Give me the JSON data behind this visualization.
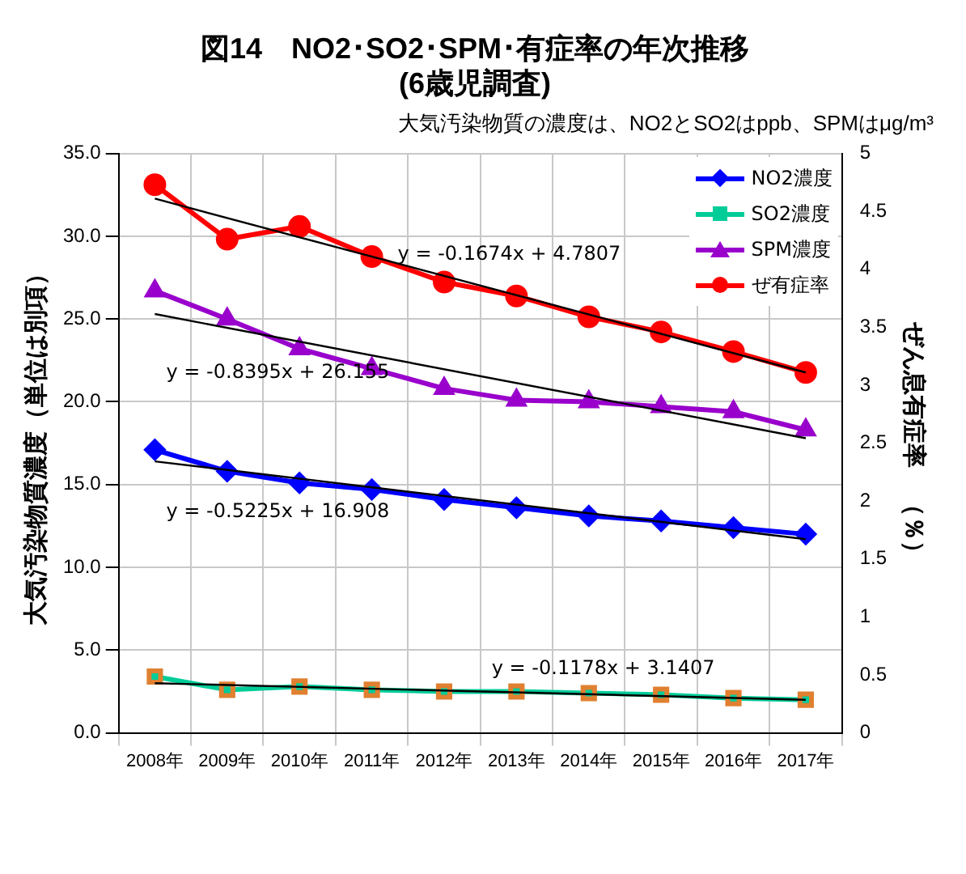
{
  "chart_data": {
    "type": "line",
    "title": "図14　NO2･SO2･SPM･有症率の年次推移\n(6歳児調査)",
    "subtitle": "大気汚染物質の濃度は、NO2とSO2はppb、SPMはμg/m³",
    "ylabel": "大気汚染物質濃度（単位は別項）",
    "y2label": "ぜん息有症率　（％）",
    "categories": [
      "2008年",
      "2009年",
      "2010年",
      "2011年",
      "2012年",
      "2013年",
      "2014年",
      "2015年",
      "2016年",
      "2017年"
    ],
    "series": [
      {
        "name": "NO2濃度",
        "color": "#0000ff",
        "marker": "diamond",
        "values": [
          17.1,
          15.8,
          15.1,
          14.7,
          14.1,
          13.6,
          13.1,
          12.8,
          12.4,
          12.0
        ]
      },
      {
        "name": "SO2濃度",
        "color": "#00cc99",
        "marker": "square",
        "values": [
          3.4,
          2.6,
          2.8,
          2.6,
          2.5,
          2.5,
          2.4,
          2.3,
          2.1,
          2.0
        ]
      },
      {
        "name": "SPM濃度",
        "color": "#9900cc",
        "marker": "triangle",
        "values": [
          26.7,
          25.0,
          23.2,
          22.0,
          20.8,
          20.1,
          20.0,
          19.7,
          19.4,
          18.3
        ]
      },
      {
        "name": "ぜ有症率",
        "color": "#ff0000",
        "marker": "circle",
        "axis": "y2",
        "values": [
          4.73,
          4.26,
          4.37,
          4.11,
          3.89,
          3.77,
          3.59,
          3.46,
          3.29,
          3.11
        ]
      },
      {
        "type": "line",
        "color": "#000000",
        "marker": "none",
        "axis": "y2",
        "x": [
          "2008年",
          "2017年"
        ],
        "values": [
          4.61,
          3.11
        ]
      },
      {
        "type": "line",
        "color": "#000000",
        "marker": "none",
        "x": [
          "2008年",
          "2017年"
        ],
        "values": [
          25.3,
          17.8
        ]
      },
      {
        "type": "line",
        "color": "#000000",
        "marker": "none",
        "x": [
          "2008年",
          "2017年"
        ],
        "values": [
          16.4,
          11.7
        ]
      },
      {
        "type": "line",
        "color": "#000000",
        "marker": "none",
        "x": [
          "2008年",
          "2017年"
        ],
        "values": [
          3.0,
          2.0
        ]
      }
    ],
    "ylim": [
      0,
      35
    ],
    "yticks": [
      {
        "value": 0,
        "label": "0.0"
      },
      {
        "value": 5,
        "label": "5.0"
      },
      {
        "value": 10,
        "label": "10.0"
      },
      {
        "value": 15,
        "label": "15.0"
      },
      {
        "value": 20,
        "label": "20.0"
      },
      {
        "value": 25,
        "label": "25.0"
      },
      {
        "value": 30,
        "label": "30.0"
      },
      {
        "value": 35,
        "label": "35.0"
      }
    ],
    "y2lim": [
      0,
      5
    ],
    "y2ticks": [
      0,
      0.5,
      1,
      1.5,
      2,
      2.5,
      3,
      3.5,
      4,
      4.5,
      5
    ],
    "annotations": [
      "y = -0.1674x + 4.7807",
      "y = -0.8395x + 26.155",
      "y = -0.5225x + 16.908",
      "y = -0.1178x + 3.1407"
    ],
    "grid": true,
    "legend": "top right",
    "line_style": "solid"
  }
}
